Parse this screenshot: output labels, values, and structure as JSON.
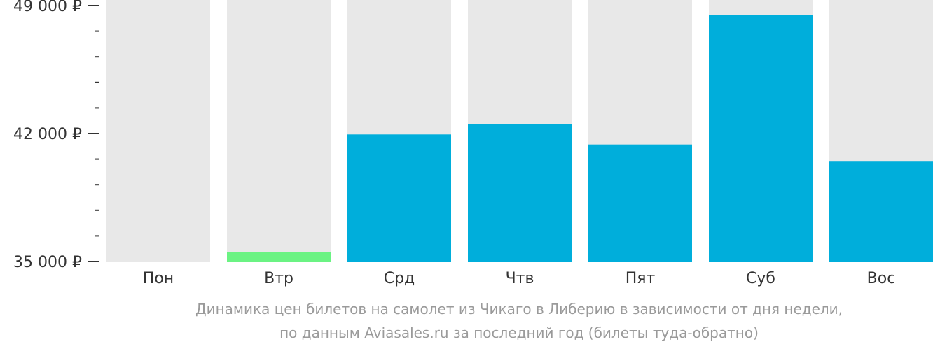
{
  "chart_data": {
    "type": "bar",
    "categories": [
      "Пон",
      "Втр",
      "Срд",
      "Чтв",
      "Пят",
      "Суб",
      "Вос"
    ],
    "values": [
      null,
      35500,
      41950,
      42500,
      41400,
      48500,
      40500
    ],
    "highlight_index": 1,
    "ylim": [
      35000,
      49000
    ],
    "y_ticks_major": [
      {
        "value": 49000,
        "label": "49 000 ₽"
      },
      {
        "value": 42000,
        "label": "42 000 ₽"
      },
      {
        "value": 35000,
        "label": "35 000 ₽"
      }
    ],
    "y_ticks_minor": [
      36400,
      37800,
      39200,
      40600,
      43400,
      44800,
      46200,
      47600
    ],
    "colors": {
      "bar": "#00AEDB",
      "highlight": "#6BF383",
      "background_bar": "#E8E8E8",
      "axis": "#333333"
    },
    "caption": [
      "Динамика цен билетов на самолет из Чикаго в Либерию в зависимости от дня недели,",
      "по данным Aviasales.ru за последний год (билеты туда-обратно)"
    ]
  }
}
